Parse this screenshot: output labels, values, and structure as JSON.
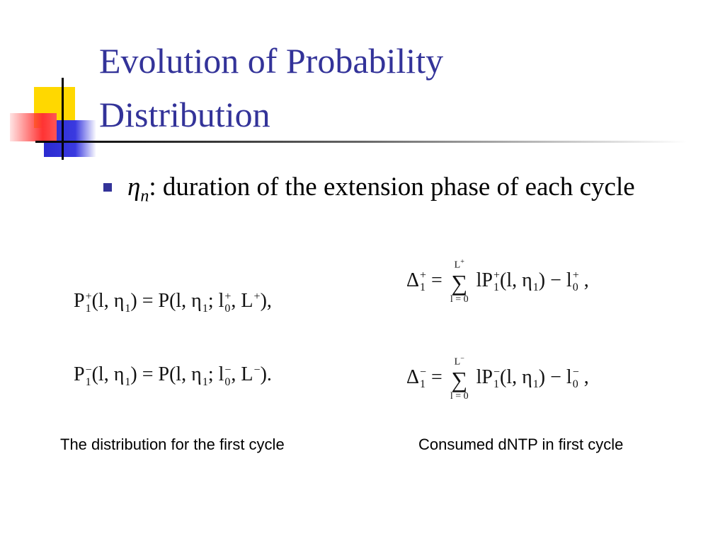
{
  "title": "Evolution of Probability Distribution",
  "bullet": {
    "symbol": "η",
    "sub": "n",
    "text": ": duration of the extension phase of each cycle"
  },
  "equations": {
    "left": [
      [
        {
          "b": "P",
          "sub": "1",
          "sup": "+"
        },
        "(l, ",
        {
          "b": "η",
          "sub": "1"
        },
        ") = P(l, ",
        {
          "b": "η",
          "sub": "1"
        },
        "; ",
        {
          "b": "l",
          "sub": "0",
          "sup": "+"
        },
        ", ",
        {
          "b": "L",
          "sup": "+"
        },
        "),"
      ],
      [
        {
          "b": "P",
          "sub": "1",
          "sup": "−"
        },
        "(l, ",
        {
          "b": "η",
          "sub": "1"
        },
        ") = P(l, ",
        {
          "b": "η",
          "sub": "1"
        },
        "; ",
        {
          "b": "l",
          "sub": "0",
          "sup": "−"
        },
        ", ",
        {
          "b": "L",
          "sup": "−"
        },
        ")."
      ]
    ],
    "right": [
      [
        {
          "b": "Δ",
          "sub": "1",
          "sup": "+"
        },
        " = ",
        {
          "op": "∑",
          "top": "L",
          "topsup": "+",
          "bottom": "l = 0"
        },
        " l",
        {
          "b": "P",
          "sub": "1",
          "sup": "+"
        },
        "(l, ",
        {
          "b": "η",
          "sub": "1"
        },
        ") − ",
        {
          "b": "l",
          "sub": "0",
          "sup": "+"
        },
        " ,"
      ],
      [
        {
          "b": "Δ",
          "sub": "1",
          "sup": "−"
        },
        " = ",
        {
          "op": "∑",
          "top": "L",
          "topsup": "−",
          "bottom": "l = 0"
        },
        " l",
        {
          "b": "P",
          "sub": "1",
          "sup": "−"
        },
        "(l, ",
        {
          "b": "η",
          "sub": "1"
        },
        ") − ",
        {
          "b": "l",
          "sub": "0",
          "sup": "−"
        },
        " ,"
      ]
    ]
  },
  "captions": {
    "left": "The distribution for the first cycle",
    "right": "Consumed dNTP in first cycle"
  }
}
